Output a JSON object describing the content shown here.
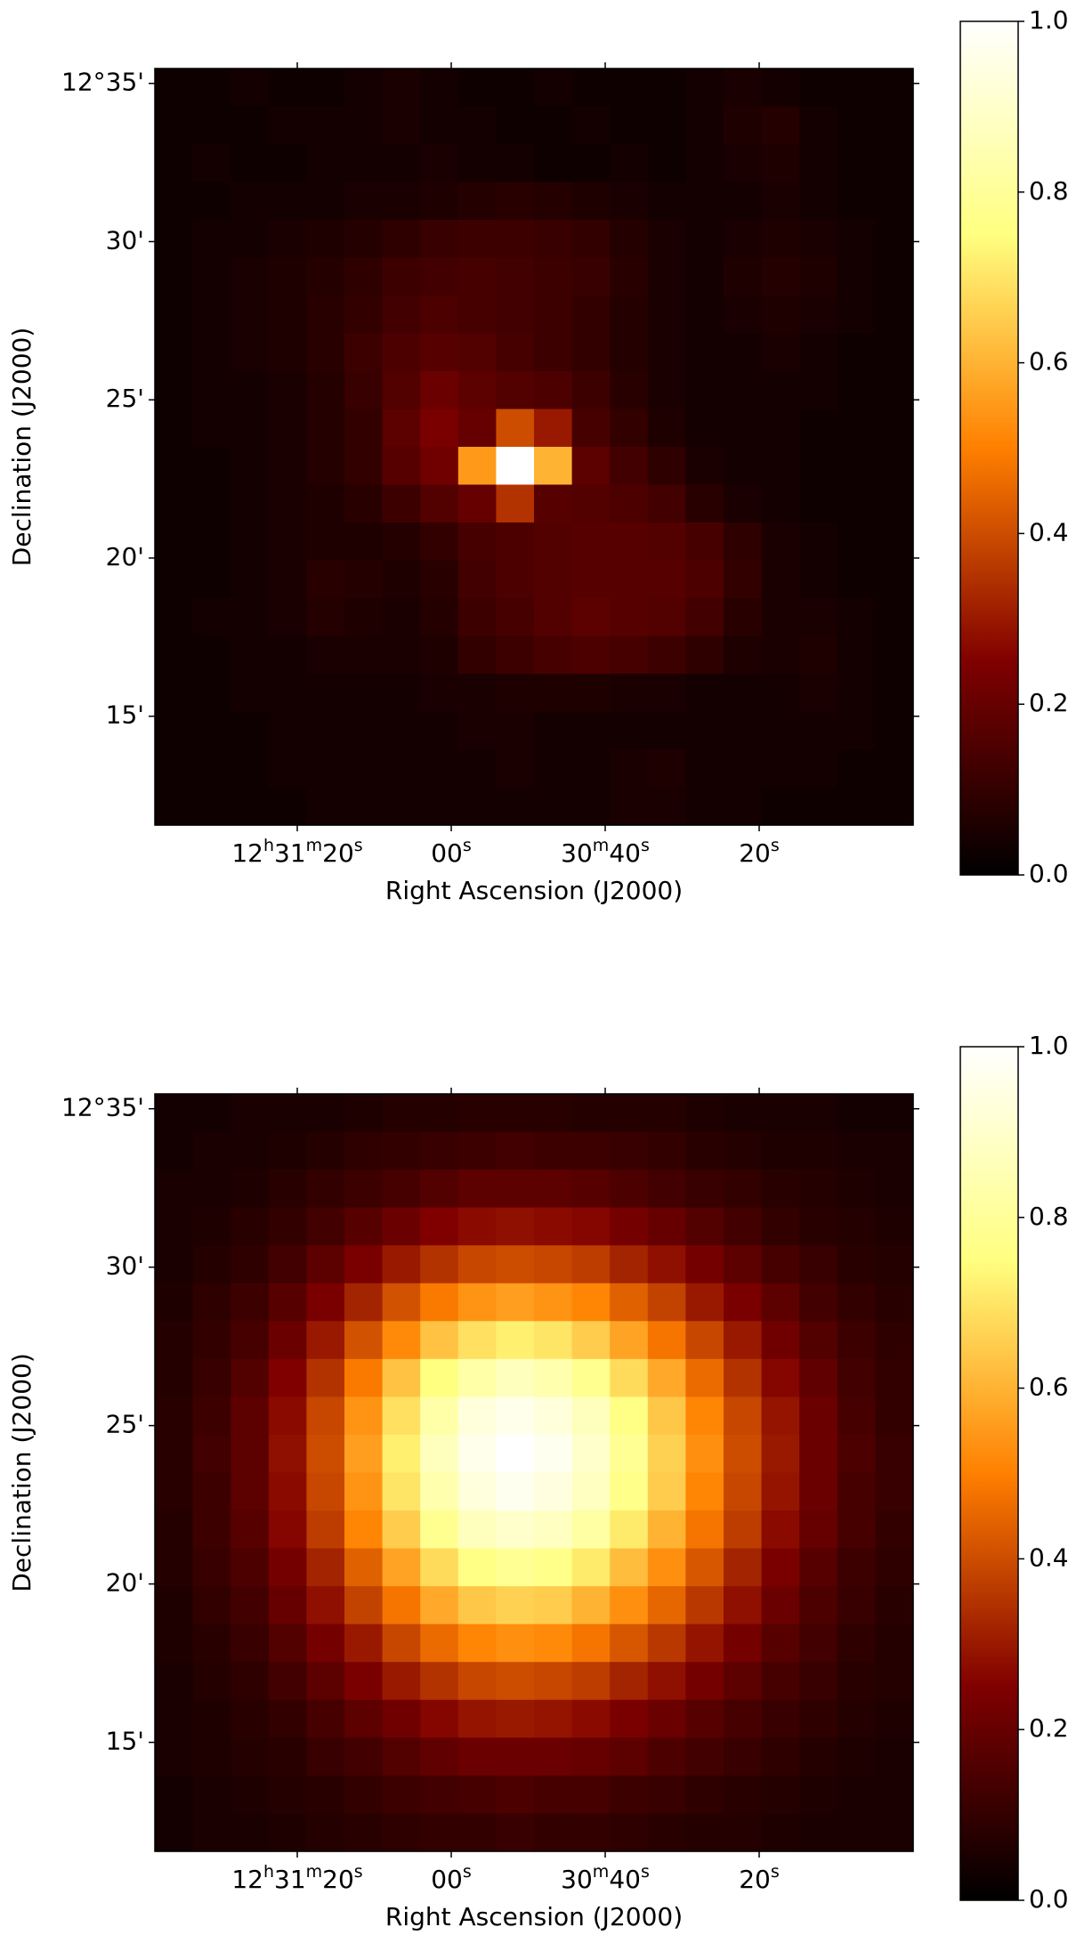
{
  "chart_data": [
    {
      "type": "heatmap",
      "cmap": "afmhot",
      "xlabel": "Right Ascension (J2000)",
      "ylabel": "Declination (J2000)",
      "xlim": [
        98.5,
        0
      ],
      "xticks": [
        {
          "value": 80,
          "label": "12h31m20s"
        },
        {
          "value": 60,
          "label": "00s"
        },
        {
          "value": 40,
          "label": "30m40s"
        },
        {
          "value": 20,
          "label": "20s"
        }
      ],
      "ylim": [
        11.56,
        35.47
      ],
      "yticks": [
        {
          "value": 35,
          "label": "12°35'"
        },
        {
          "value": 30,
          "label": "30'"
        },
        {
          "value": 25,
          "label": "25'"
        },
        {
          "value": 20,
          "label": "20'"
        },
        {
          "value": 15,
          "label": "15'"
        }
      ],
      "zlim": [
        0,
        1
      ],
      "zticks": [
        {
          "value": 0,
          "label": "0.0"
        },
        0.2,
        0.4,
        0.6,
        0.8,
        {
          "value": 1,
          "label": "1.0"
        }
      ],
      "z": [
        [
          0.03,
          0.03,
          0.04,
          0.03,
          0.03,
          0.04,
          0.05,
          0.04,
          0.03,
          0.03,
          0.04,
          0.03,
          0.03,
          0.03,
          0.04,
          0.05,
          0.04,
          0.03,
          0.03,
          0.03
        ],
        [
          0.03,
          0.03,
          0.03,
          0.04,
          0.04,
          0.04,
          0.05,
          0.04,
          0.04,
          0.03,
          0.03,
          0.04,
          0.03,
          0.03,
          0.04,
          0.06,
          0.07,
          0.04,
          0.03,
          0.03
        ],
        [
          0.03,
          0.04,
          0.03,
          0.03,
          0.04,
          0.04,
          0.04,
          0.05,
          0.04,
          0.04,
          0.03,
          0.03,
          0.04,
          0.03,
          0.04,
          0.05,
          0.06,
          0.04,
          0.03,
          0.03
        ],
        [
          0.03,
          0.03,
          0.04,
          0.04,
          0.04,
          0.05,
          0.05,
          0.06,
          0.07,
          0.08,
          0.07,
          0.06,
          0.05,
          0.04,
          0.04,
          0.04,
          0.05,
          0.04,
          0.03,
          0.03
        ],
        [
          0.03,
          0.04,
          0.04,
          0.05,
          0.06,
          0.07,
          0.09,
          0.11,
          0.12,
          0.12,
          0.11,
          0.1,
          0.07,
          0.05,
          0.04,
          0.05,
          0.06,
          0.05,
          0.04,
          0.03
        ],
        [
          0.03,
          0.04,
          0.05,
          0.06,
          0.07,
          0.09,
          0.12,
          0.13,
          0.14,
          0.13,
          0.12,
          0.11,
          0.08,
          0.05,
          0.04,
          0.06,
          0.07,
          0.06,
          0.04,
          0.03
        ],
        [
          0.03,
          0.04,
          0.05,
          0.06,
          0.08,
          0.1,
          0.13,
          0.15,
          0.14,
          0.13,
          0.12,
          0.1,
          0.07,
          0.05,
          0.04,
          0.05,
          0.06,
          0.05,
          0.04,
          0.03
        ],
        [
          0.03,
          0.04,
          0.05,
          0.06,
          0.08,
          0.12,
          0.15,
          0.17,
          0.16,
          0.14,
          0.12,
          0.1,
          0.07,
          0.05,
          0.04,
          0.04,
          0.05,
          0.04,
          0.03,
          0.03
        ],
        [
          0.03,
          0.04,
          0.04,
          0.05,
          0.07,
          0.11,
          0.16,
          0.21,
          0.18,
          0.16,
          0.15,
          0.12,
          0.08,
          0.05,
          0.04,
          0.04,
          0.04,
          0.04,
          0.03,
          0.03
        ],
        [
          0.03,
          0.04,
          0.04,
          0.05,
          0.07,
          0.1,
          0.18,
          0.24,
          0.2,
          0.4,
          0.3,
          0.14,
          0.1,
          0.06,
          0.04,
          0.04,
          0.04,
          0.03,
          0.03,
          0.03
        ],
        [
          0.03,
          0.03,
          0.04,
          0.05,
          0.07,
          0.1,
          0.17,
          0.22,
          0.55,
          1.0,
          0.6,
          0.18,
          0.13,
          0.09,
          0.05,
          0.04,
          0.04,
          0.03,
          0.03,
          0.03
        ],
        [
          0.03,
          0.03,
          0.04,
          0.05,
          0.06,
          0.08,
          0.12,
          0.16,
          0.2,
          0.35,
          0.17,
          0.16,
          0.15,
          0.13,
          0.08,
          0.05,
          0.04,
          0.03,
          0.03,
          0.03
        ],
        [
          0.03,
          0.03,
          0.04,
          0.05,
          0.06,
          0.06,
          0.07,
          0.1,
          0.14,
          0.15,
          0.16,
          0.17,
          0.17,
          0.16,
          0.14,
          0.09,
          0.05,
          0.04,
          0.03,
          0.03
        ],
        [
          0.03,
          0.03,
          0.04,
          0.05,
          0.08,
          0.07,
          0.06,
          0.08,
          0.13,
          0.15,
          0.16,
          0.17,
          0.17,
          0.17,
          0.15,
          0.1,
          0.05,
          0.04,
          0.03,
          0.03
        ],
        [
          0.03,
          0.04,
          0.04,
          0.05,
          0.07,
          0.06,
          0.05,
          0.07,
          0.12,
          0.14,
          0.16,
          0.18,
          0.17,
          0.16,
          0.13,
          0.08,
          0.05,
          0.05,
          0.04,
          0.03
        ],
        [
          0.03,
          0.03,
          0.04,
          0.04,
          0.05,
          0.05,
          0.05,
          0.06,
          0.1,
          0.12,
          0.14,
          0.15,
          0.14,
          0.12,
          0.09,
          0.06,
          0.05,
          0.06,
          0.04,
          0.03
        ],
        [
          0.03,
          0.03,
          0.04,
          0.04,
          0.04,
          0.04,
          0.04,
          0.05,
          0.05,
          0.06,
          0.06,
          0.06,
          0.05,
          0.05,
          0.04,
          0.04,
          0.04,
          0.05,
          0.04,
          0.03
        ],
        [
          0.03,
          0.03,
          0.03,
          0.04,
          0.04,
          0.04,
          0.04,
          0.04,
          0.05,
          0.05,
          0.04,
          0.04,
          0.04,
          0.04,
          0.04,
          0.04,
          0.04,
          0.04,
          0.04,
          0.03
        ],
        [
          0.03,
          0.03,
          0.03,
          0.04,
          0.04,
          0.04,
          0.04,
          0.04,
          0.04,
          0.05,
          0.04,
          0.04,
          0.05,
          0.06,
          0.04,
          0.04,
          0.04,
          0.04,
          0.03,
          0.03
        ],
        [
          0.03,
          0.03,
          0.03,
          0.03,
          0.04,
          0.04,
          0.04,
          0.04,
          0.04,
          0.04,
          0.04,
          0.04,
          0.05,
          0.05,
          0.04,
          0.04,
          0.03,
          0.03,
          0.03,
          0.03
        ]
      ]
    },
    {
      "type": "heatmap",
      "cmap": "afmhot",
      "xlabel": "Right Ascension (J2000)",
      "ylabel": "Declination (J2000)",
      "xlim": [
        98.5,
        0
      ],
      "xticks": [
        {
          "value": 80,
          "label": "12h31m20s"
        },
        {
          "value": 60,
          "label": "00s"
        },
        {
          "value": 40,
          "label": "30m40s"
        },
        {
          "value": 20,
          "label": "20s"
        }
      ],
      "ylim": [
        11.56,
        35.47
      ],
      "yticks": [
        {
          "value": 35,
          "label": "12°35'"
        },
        {
          "value": 30,
          "label": "30'"
        },
        {
          "value": 25,
          "label": "25'"
        },
        {
          "value": 20,
          "label": "20'"
        },
        {
          "value": 15,
          "label": "15'"
        }
      ],
      "zlim": [
        0,
        1
      ],
      "zticks": [
        {
          "value": 0,
          "label": "0.0"
        },
        0.2,
        0.4,
        0.6,
        0.8,
        {
          "value": 1,
          "label": "1.0"
        }
      ],
      "z": [
        [
          0.04,
          0.04,
          0.05,
          0.05,
          0.05,
          0.06,
          0.07,
          0.07,
          0.08,
          0.08,
          0.08,
          0.07,
          0.07,
          0.07,
          0.06,
          0.05,
          0.05,
          0.05,
          0.04,
          0.04
        ],
        [
          0.04,
          0.05,
          0.05,
          0.06,
          0.07,
          0.09,
          0.1,
          0.11,
          0.12,
          0.13,
          0.12,
          0.12,
          0.11,
          0.1,
          0.08,
          0.07,
          0.06,
          0.06,
          0.05,
          0.05
        ],
        [
          0.05,
          0.05,
          0.06,
          0.08,
          0.1,
          0.12,
          0.14,
          0.16,
          0.18,
          0.18,
          0.18,
          0.17,
          0.15,
          0.13,
          0.11,
          0.1,
          0.08,
          0.07,
          0.06,
          0.05
        ],
        [
          0.05,
          0.06,
          0.08,
          0.1,
          0.13,
          0.17,
          0.21,
          0.25,
          0.27,
          0.28,
          0.27,
          0.26,
          0.23,
          0.2,
          0.16,
          0.13,
          0.1,
          0.08,
          0.07,
          0.06
        ],
        [
          0.05,
          0.07,
          0.09,
          0.13,
          0.18,
          0.24,
          0.3,
          0.35,
          0.39,
          0.4,
          0.39,
          0.37,
          0.32,
          0.28,
          0.23,
          0.18,
          0.14,
          0.11,
          0.08,
          0.07
        ],
        [
          0.06,
          0.09,
          0.12,
          0.17,
          0.24,
          0.32,
          0.41,
          0.49,
          0.54,
          0.56,
          0.54,
          0.51,
          0.44,
          0.38,
          0.3,
          0.24,
          0.18,
          0.13,
          0.1,
          0.08
        ],
        [
          0.07,
          0.1,
          0.14,
          0.21,
          0.3,
          0.41,
          0.52,
          0.63,
          0.69,
          0.72,
          0.7,
          0.65,
          0.57,
          0.48,
          0.39,
          0.3,
          0.22,
          0.16,
          0.12,
          0.09
        ],
        [
          0.07,
          0.11,
          0.16,
          0.25,
          0.35,
          0.49,
          0.63,
          0.75,
          0.83,
          0.87,
          0.84,
          0.78,
          0.68,
          0.58,
          0.46,
          0.35,
          0.26,
          0.19,
          0.13,
          0.1
        ],
        [
          0.08,
          0.12,
          0.18,
          0.27,
          0.39,
          0.54,
          0.69,
          0.83,
          0.93,
          0.96,
          0.93,
          0.87,
          0.76,
          0.64,
          0.51,
          0.39,
          0.29,
          0.21,
          0.14,
          0.1
        ],
        [
          0.08,
          0.13,
          0.18,
          0.28,
          0.4,
          0.56,
          0.72,
          0.87,
          0.96,
          1.0,
          0.97,
          0.9,
          0.79,
          0.66,
          0.53,
          0.4,
          0.3,
          0.21,
          0.15,
          0.11
        ],
        [
          0.08,
          0.12,
          0.18,
          0.27,
          0.39,
          0.54,
          0.7,
          0.84,
          0.93,
          0.97,
          0.94,
          0.88,
          0.77,
          0.65,
          0.51,
          0.39,
          0.29,
          0.21,
          0.14,
          0.11
        ],
        [
          0.07,
          0.12,
          0.17,
          0.26,
          0.37,
          0.51,
          0.65,
          0.78,
          0.87,
          0.9,
          0.88,
          0.82,
          0.71,
          0.6,
          0.48,
          0.37,
          0.27,
          0.2,
          0.14,
          0.1
        ],
        [
          0.07,
          0.11,
          0.15,
          0.23,
          0.32,
          0.44,
          0.57,
          0.68,
          0.76,
          0.79,
          0.77,
          0.71,
          0.62,
          0.53,
          0.42,
          0.32,
          0.24,
          0.17,
          0.12,
          0.09
        ],
        [
          0.06,
          0.1,
          0.13,
          0.2,
          0.28,
          0.38,
          0.48,
          0.58,
          0.64,
          0.66,
          0.65,
          0.6,
          0.53,
          0.45,
          0.36,
          0.28,
          0.21,
          0.15,
          0.11,
          0.08
        ],
        [
          0.06,
          0.08,
          0.11,
          0.16,
          0.23,
          0.3,
          0.39,
          0.46,
          0.51,
          0.53,
          0.52,
          0.48,
          0.42,
          0.36,
          0.29,
          0.23,
          0.17,
          0.13,
          0.09,
          0.07
        ],
        [
          0.05,
          0.07,
          0.09,
          0.13,
          0.18,
          0.24,
          0.3,
          0.35,
          0.39,
          0.4,
          0.39,
          0.37,
          0.32,
          0.28,
          0.23,
          0.18,
          0.14,
          0.11,
          0.08,
          0.07
        ],
        [
          0.05,
          0.06,
          0.08,
          0.1,
          0.14,
          0.18,
          0.22,
          0.26,
          0.29,
          0.3,
          0.29,
          0.27,
          0.24,
          0.21,
          0.17,
          0.14,
          0.11,
          0.09,
          0.07,
          0.06
        ],
        [
          0.05,
          0.06,
          0.07,
          0.08,
          0.11,
          0.13,
          0.16,
          0.19,
          0.21,
          0.21,
          0.21,
          0.2,
          0.18,
          0.15,
          0.13,
          0.11,
          0.09,
          0.07,
          0.06,
          0.05
        ],
        [
          0.04,
          0.05,
          0.06,
          0.07,
          0.08,
          0.1,
          0.12,
          0.13,
          0.14,
          0.15,
          0.14,
          0.14,
          0.12,
          0.11,
          0.09,
          0.08,
          0.07,
          0.06,
          0.05,
          0.05
        ],
        [
          0.04,
          0.05,
          0.05,
          0.06,
          0.07,
          0.08,
          0.09,
          0.1,
          0.1,
          0.11,
          0.1,
          0.1,
          0.09,
          0.08,
          0.07,
          0.07,
          0.06,
          0.05,
          0.05,
          0.05
        ]
      ]
    }
  ]
}
